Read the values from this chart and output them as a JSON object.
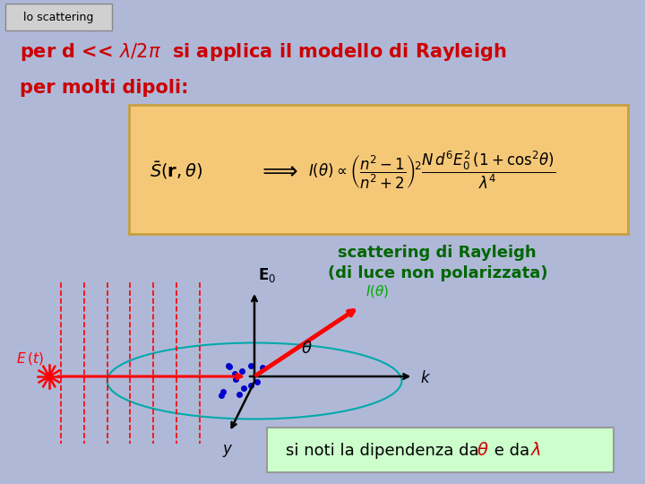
{
  "bg_color": "#b0b8d8",
  "title_box_color": "#d0d0d0",
  "title_text": "lo scattering",
  "title_color": "#000000",
  "line_color": "#cc0000",
  "formula_box_color": "#f5c878",
  "formula_box_edge": "#c8a040",
  "rayleigh_color": "#006600",
  "note_box_color": "#ccffcc",
  "note_red_color": "#cc0000",
  "rayleigh_line1": "scattering di Rayleigh",
  "rayleigh_line2": "(di luce non polarizzata)"
}
